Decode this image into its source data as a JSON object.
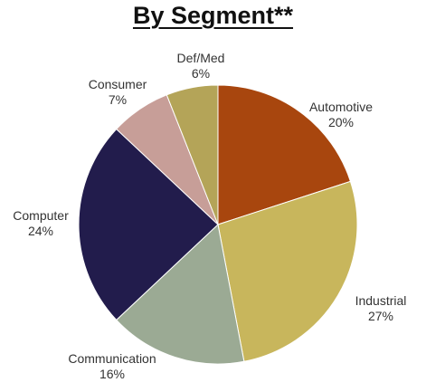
{
  "chart_data": {
    "type": "pie",
    "title": "By Segment**",
    "slices": [
      {
        "label": "Automotive",
        "value": 20,
        "percent_label": "20%",
        "color": "#A8460E"
      },
      {
        "label": "Industrial",
        "value": 27,
        "percent_label": "27%",
        "color": "#C8B65C"
      },
      {
        "label": "Communication",
        "value": 16,
        "percent_label": "16%",
        "color": "#9BAA94"
      },
      {
        "label": "Computer",
        "value": 24,
        "percent_label": "24%",
        "color": "#221C4C"
      },
      {
        "label": "Consumer",
        "value": 7,
        "percent_label": "7%",
        "color": "#C79E98"
      },
      {
        "label": "Def/Med",
        "value": 6,
        "percent_label": "6%",
        "color": "#B4A458"
      }
    ],
    "start": "top",
    "direction": "clockwise"
  }
}
